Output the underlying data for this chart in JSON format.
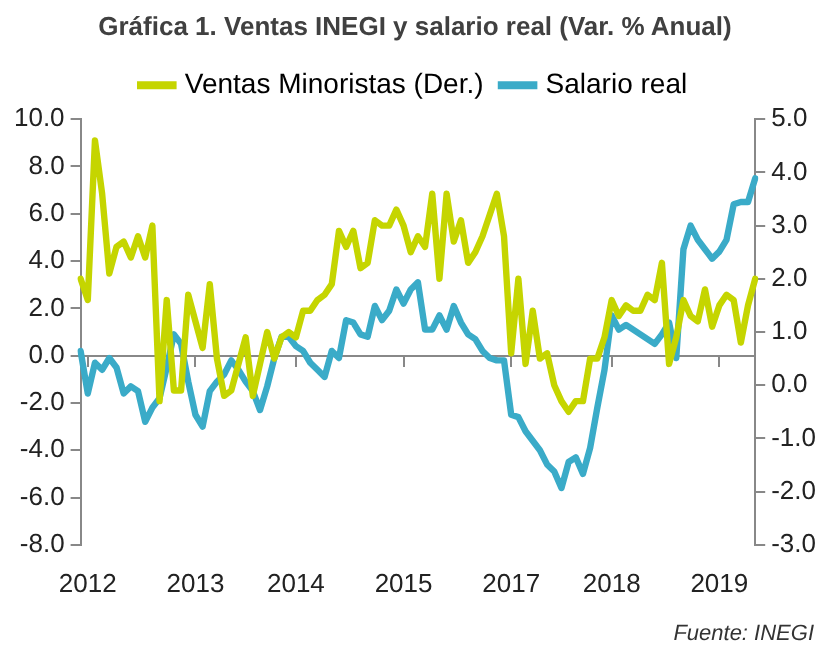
{
  "chart_data": {
    "type": "line",
    "title": "Gráfica 1. Ventas INEGI y salario real (Var. % Anual)",
    "categories": [
      null,
      "2012",
      null,
      null,
      null,
      null,
      null,
      null,
      null,
      null,
      null,
      null,
      null,
      null,
      null,
      null,
      "2013",
      null,
      null,
      null,
      null,
      null,
      null,
      null,
      null,
      null,
      null,
      null,
      null,
      null,
      "2014",
      null,
      null,
      null,
      null,
      null,
      null,
      null,
      null,
      null,
      null,
      null,
      null,
      null,
      null,
      "2015",
      null,
      null,
      null,
      null,
      null,
      null,
      null,
      null,
      null,
      null,
      null,
      null,
      null,
      null,
      "2017",
      null,
      null,
      null,
      null,
      null,
      null,
      null,
      null,
      null,
      null,
      null,
      null,
      null,
      "2018",
      null,
      null,
      null,
      null,
      null,
      null,
      null,
      null,
      null,
      null,
      null,
      null,
      null,
      null,
      "2019",
      null,
      null,
      null,
      null,
      null
    ],
    "series": [
      {
        "name": "Ventas Minoristas (Der.)",
        "color": "#c5d500",
        "axis": "y2",
        "values": [
          2.0,
          1.6,
          4.6,
          3.6,
          2.1,
          2.6,
          2.7,
          2.4,
          2.8,
          2.4,
          3.0,
          -0.3,
          1.6,
          -0.1,
          -0.1,
          1.7,
          1.2,
          0.7,
          1.9,
          0.5,
          -0.2,
          -0.1,
          0.4,
          0.9,
          -0.2,
          0.4,
          1.0,
          0.5,
          0.9,
          1.0,
          0.9,
          1.4,
          1.4,
          1.6,
          1.7,
          1.9,
          2.9,
          2.6,
          2.9,
          2.2,
          2.3,
          3.1,
          3.0,
          3.0,
          3.3,
          3.0,
          2.5,
          2.8,
          2.6,
          3.6,
          2.0,
          3.6,
          2.7,
          3.1,
          2.3,
          2.5,
          2.8,
          3.2,
          3.6,
          2.8,
          0.6,
          2.0,
          0.4,
          1.4,
          0.5,
          0.6,
          0.0,
          -0.3,
          -0.5,
          -0.3,
          -0.3,
          0.5,
          0.5,
          0.9,
          1.6,
          1.3,
          1.5,
          1.4,
          1.4,
          1.7,
          1.6,
          2.3,
          0.4,
          0.9,
          1.6,
          1.3,
          1.2,
          1.8,
          1.1,
          1.5,
          1.7,
          1.6,
          0.8,
          1.5,
          2.0
        ]
      },
      {
        "name": "Salario real",
        "color": "#3aabc8",
        "values": [
          0.2,
          -1.6,
          -0.3,
          -0.6,
          -0.1,
          -0.5,
          -1.6,
          -1.3,
          -1.5,
          -2.8,
          -2.2,
          -1.8,
          -0.5,
          0.9,
          0.5,
          -1.1,
          -2.5,
          -3.0,
          -1.5,
          -1.1,
          -0.8,
          -0.2,
          -0.6,
          -1.1,
          -1.5,
          -2.3,
          -1.3,
          -0.1,
          0.8,
          0.8,
          0.4,
          0.2,
          -0.3,
          -0.6,
          -0.9,
          0.2,
          -0.1,
          1.5,
          1.4,
          0.9,
          0.8,
          2.1,
          1.5,
          1.9,
          2.8,
          2.2,
          2.8,
          3.1,
          1.1,
          1.1,
          1.7,
          1.1,
          2.1,
          1.4,
          0.9,
          0.7,
          0.2,
          -0.1,
          -0.2,
          -0.2,
          -2.5,
          -2.6,
          -3.2,
          -3.6,
          -4.0,
          -4.6,
          -4.9,
          -5.6,
          -4.5,
          -4.3,
          -5.0,
          -3.9,
          -2.2,
          -0.6,
          1.7,
          1.1,
          1.3,
          1.1,
          0.9,
          0.7,
          0.5,
          0.9,
          1.4,
          -0.1,
          4.5,
          5.5,
          4.9,
          4.5,
          4.1,
          4.4,
          4.9,
          6.4,
          6.5,
          6.5,
          7.5
        ]
      }
    ],
    "ylim": [
      -8,
      10
    ],
    "yticks": [
      {
        "value": -8,
        "label": "-8.0"
      },
      {
        "value": -6,
        "label": "-6.0"
      },
      {
        "value": -4,
        "label": "-4.0"
      },
      {
        "value": -2,
        "label": "-2.0"
      },
      {
        "value": 0,
        "label": "0.0"
      },
      {
        "value": 2,
        "label": "2.0"
      },
      {
        "value": 4,
        "label": "4.0"
      },
      {
        "value": 6,
        "label": "6.0"
      },
      {
        "value": 8,
        "label": "8.0"
      },
      {
        "value": 10,
        "label": "10.0"
      }
    ],
    "y2lim": [
      -3,
      5
    ],
    "y2ticks": [
      {
        "value": -3,
        "label": "-3.0"
      },
      {
        "value": -2,
        "label": "-2.0"
      },
      {
        "value": -1,
        "label": "-1.0"
      },
      {
        "value": 0,
        "label": "0.0"
      },
      {
        "value": 1,
        "label": "1.0"
      },
      {
        "value": 2,
        "label": "2.0"
      },
      {
        "value": 3,
        "label": "3.0"
      },
      {
        "value": 4,
        "label": "4.0"
      },
      {
        "value": 5,
        "label": "5.0"
      }
    ],
    "legend": "top",
    "marker": "none",
    "line_style": "solid",
    "annotations": [
      "Fuente: INEGI"
    ]
  }
}
